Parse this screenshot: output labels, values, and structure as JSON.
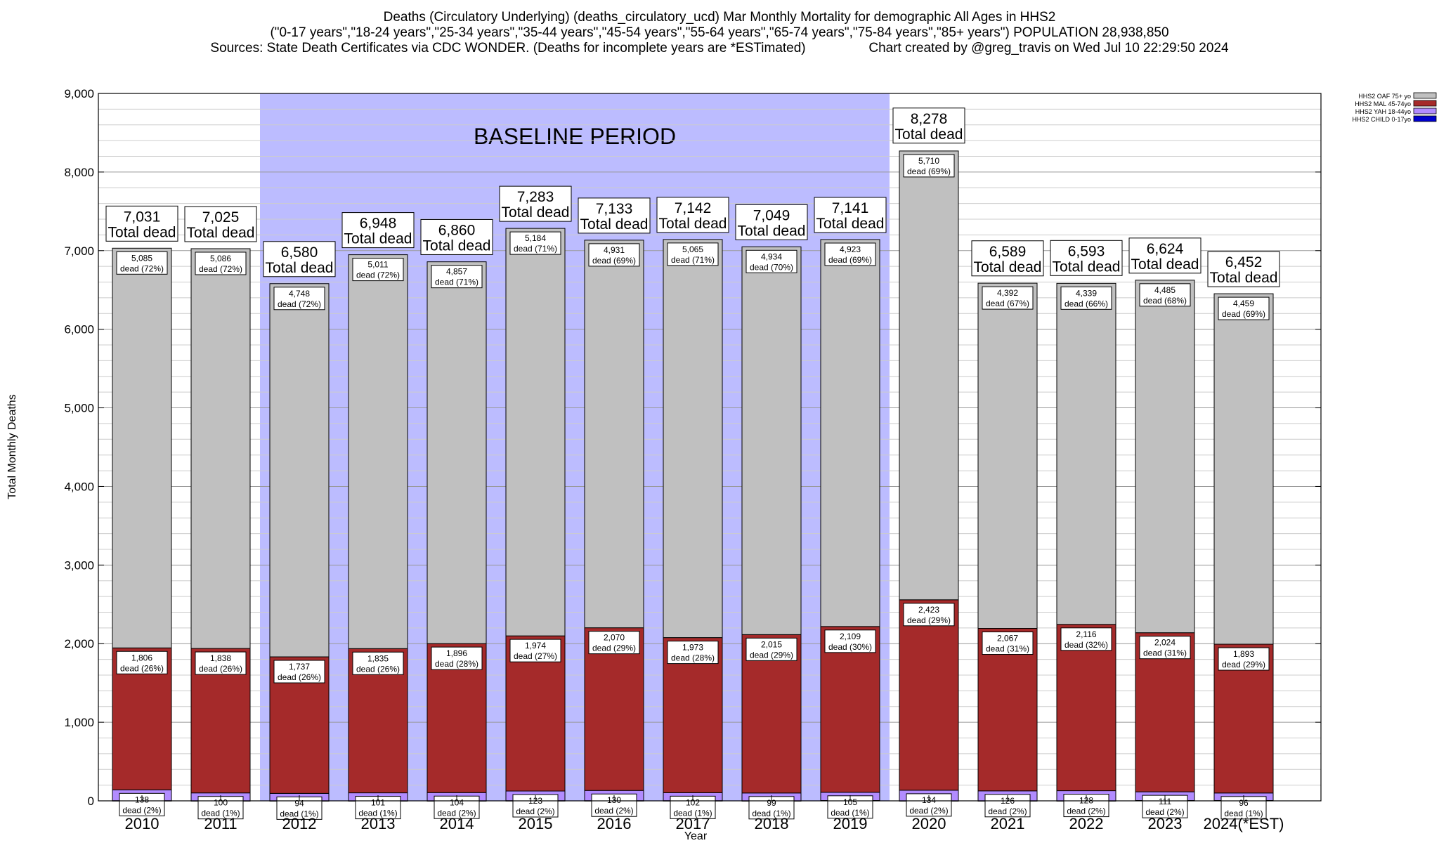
{
  "title": {
    "line1": "Deaths (Circulatory Underlying) (deaths_circulatory_ucd) Mar Monthly Mortality for demographic All Ages in HHS2",
    "line2": "(\"0-17 years\",\"18-24 years\",\"25-34 years\",\"35-44 years\",\"45-54 years\",\"55-64 years\",\"65-74 years\",\"75-84 years\",\"85+ years\") POPULATION 28,938,850",
    "line3": "Sources: State Death Certificates via CDC WONDER. (Deaths for incomplete years are *ESTimated)                 Chart created by @greg_travis on Wed Jul 10 22:29:50 2024"
  },
  "chart_data": {
    "type": "bar",
    "stacked": true,
    "xlabel": "Year",
    "ylabel": "Total Monthly Deaths",
    "ylim": [
      0,
      9000
    ],
    "yticks": [
      "0",
      "1,000",
      "2,000",
      "3,000",
      "4,000",
      "5,000",
      "6,000",
      "7,000",
      "8,000",
      "9,000"
    ],
    "grid": true,
    "legend_position": "top-right",
    "baseline_label": "BASELINE PERIOD",
    "baseline_range": [
      "2012",
      "2019"
    ],
    "total_label": "Total dead",
    "dead_label": "dead",
    "categories": [
      "2010",
      "2011",
      "2012",
      "2013",
      "2014",
      "2015",
      "2016",
      "2017",
      "2018",
      "2019",
      "2020",
      "2021",
      "2022",
      "2023",
      "2024(*EST)"
    ],
    "totals": [
      7031,
      7025,
      6580,
      6948,
      6860,
      7283,
      7133,
      7142,
      7049,
      7141,
      8278,
      6589,
      6593,
      6624,
      6452
    ],
    "totals_text": [
      "7,031",
      "7,025",
      "6,580",
      "6,948",
      "6,860",
      "7,283",
      "7,133",
      "7,142",
      "7,049",
      "7,141",
      "8,278",
      "6,589",
      "6,593",
      "6,624",
      "6,452"
    ],
    "series": [
      {
        "name": "HHS2 CHILD 0-17yo",
        "color": "#0000cc",
        "values": [
          2,
          1,
          1,
          1,
          1,
          2,
          2,
          2,
          1,
          4,
          1,
          1,
          1,
          4,
          4
        ]
      },
      {
        "name": "HHS2 YAH 18-44yo",
        "color": "#b28cff",
        "values": [
          138,
          100,
          94,
          101,
          104,
          123,
          130,
          102,
          99,
          105,
          134,
          126,
          128,
          111,
          96
        ],
        "labels": [
          "138",
          "100",
          "94",
          "101",
          "104",
          "123",
          "130",
          "102",
          "99",
          "105",
          "134",
          "126",
          "128",
          "111",
          "96"
        ],
        "pct": [
          "(2%)",
          "(1%)",
          "(1%)",
          "(1%)",
          "(2%)",
          "(2%)",
          "(2%)",
          "(1%)",
          "(1%)",
          "(1%)",
          "(2%)",
          "(2%)",
          "(2%)",
          "(2%)",
          "(1%)"
        ]
      },
      {
        "name": "HHS2 MAL 45-74yo",
        "color": "#a52a2a",
        "values": [
          1806,
          1838,
          1737,
          1835,
          1896,
          1974,
          2070,
          1973,
          2015,
          2109,
          2423,
          2067,
          2116,
          2024,
          1893
        ],
        "labels": [
          "1,806",
          "1,838",
          "1,737",
          "1,835",
          "1,896",
          "1,974",
          "2,070",
          "1,973",
          "2,015",
          "2,109",
          "2,423",
          "2,067",
          "2,116",
          "2,024",
          "1,893"
        ],
        "pct": [
          "(26%)",
          "(26%)",
          "(26%)",
          "(26%)",
          "(28%)",
          "(27%)",
          "(29%)",
          "(28%)",
          "(29%)",
          "(30%)",
          "(29%)",
          "(31%)",
          "(32%)",
          "(31%)",
          "(29%)"
        ]
      },
      {
        "name": "HHS2 OAF 75+ yo",
        "color": "#c0c0c0",
        "values": [
          5085,
          5086,
          4748,
          5011,
          4857,
          5184,
          4931,
          5065,
          4934,
          4923,
          5710,
          4392,
          4339,
          4485,
          4459
        ],
        "labels": [
          "5,085",
          "5,086",
          "4,748",
          "5,011",
          "4,857",
          "5,184",
          "4,931",
          "5,065",
          "4,934",
          "4,923",
          "5,710",
          "4,392",
          "4,339",
          "4,485",
          "4,459"
        ],
        "pct": [
          "(72%)",
          "(72%)",
          "(72%)",
          "(72%)",
          "(71%)",
          "(71%)",
          "(69%)",
          "(71%)",
          "(70%)",
          "(69%)",
          "(69%)",
          "(67%)",
          "(66%)",
          "(68%)",
          "(69%)"
        ]
      }
    ],
    "legend_order": [
      "HHS2 OAF 75+ yo",
      "HHS2 MAL 45-74yo",
      "HHS2 YAH 18-44yo",
      "HHS2 CHILD 0-17yo"
    ]
  }
}
